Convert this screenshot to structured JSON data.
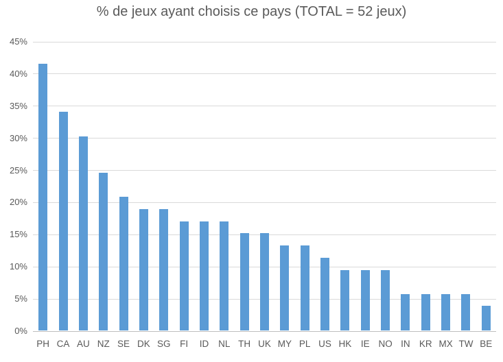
{
  "chart_data": {
    "type": "bar",
    "title": "% de jeux ayant choisis ce pays (TOTAL = 52 jeux)",
    "categories": [
      "PH",
      "CA",
      "AU",
      "NZ",
      "SE",
      "DK",
      "SG",
      "FI",
      "ID",
      "NL",
      "TH",
      "UK",
      "MY",
      "PL",
      "US",
      "HK",
      "IE",
      "NO",
      "IN",
      "KR",
      "MX",
      "TW",
      "BE"
    ],
    "values": [
      41.5,
      34.0,
      30.2,
      24.5,
      20.8,
      18.9,
      18.9,
      17.0,
      17.0,
      17.0,
      15.1,
      15.1,
      13.2,
      13.2,
      11.3,
      9.4,
      9.4,
      9.4,
      5.7,
      5.7,
      5.7,
      5.7,
      3.8
    ],
    "xlabel": "",
    "ylabel": "",
    "ylim": [
      0,
      45
    ],
    "y_tick_step": 5,
    "y_ticks": [
      "0%",
      "5%",
      "10%",
      "15%",
      "20%",
      "25%",
      "30%",
      "35%",
      "40%",
      "45%"
    ],
    "grid": true,
    "legend": false,
    "colors": {
      "bar": "#5B9BD5",
      "gridline": "#D9D9D9",
      "axis_line": "#BFBFBF",
      "text": "#595959",
      "background": "#FFFFFF"
    }
  }
}
